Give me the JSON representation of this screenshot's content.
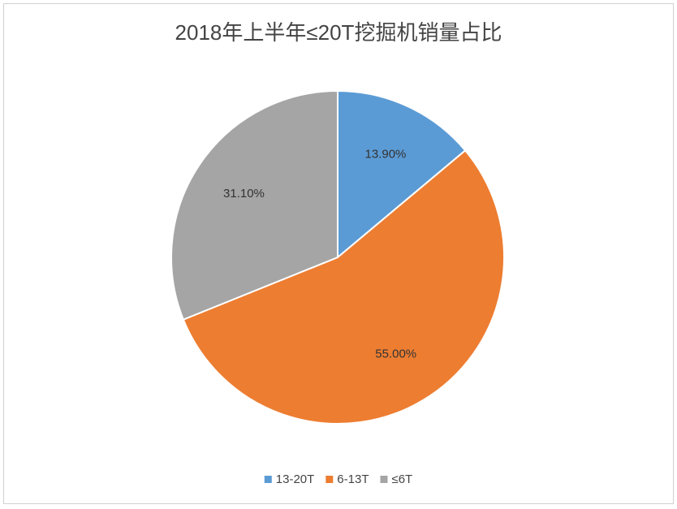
{
  "chart_data": {
    "type": "pie",
    "title": "2018年上半年≤20T挖掘机销量占比",
    "categories": [
      "13-20T",
      "6-13T",
      "≤6T"
    ],
    "values": [
      13.9,
      55.0,
      31.1
    ],
    "value_labels": [
      "13.90%",
      "55.00%",
      "31.10%"
    ],
    "colors": [
      "#5b9bd5",
      "#ed7d31",
      "#a5a5a5"
    ]
  }
}
